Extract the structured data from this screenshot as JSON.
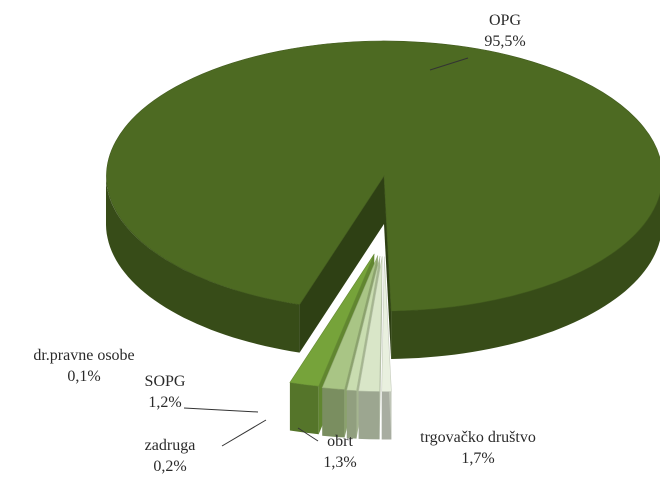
{
  "chart_data": {
    "type": "pie",
    "title": "",
    "exploded": true,
    "three_d": true,
    "slices": [
      {
        "label": "OPG",
        "value_text": "95,5%",
        "value": 95.5,
        "color": "#4d6a22"
      },
      {
        "label": "trgovačko društvo",
        "value_text": "1,7%",
        "value": 1.7,
        "color": "#76a33a"
      },
      {
        "label": "obrt",
        "value_text": "1,3%",
        "value": 1.3,
        "color": "#a9c585"
      },
      {
        "label": "zadruga",
        "value_text": "0,2%",
        "value": 0.2,
        "color": "#c9ddb0"
      },
      {
        "label": "SOPG",
        "value_text": "1,2%",
        "value": 1.2,
        "color": "#d9e6c8"
      },
      {
        "label": "dr.pravne osobe",
        "value_text": "0,1%",
        "value": 0.1,
        "color": "#e9f0df"
      }
    ]
  }
}
